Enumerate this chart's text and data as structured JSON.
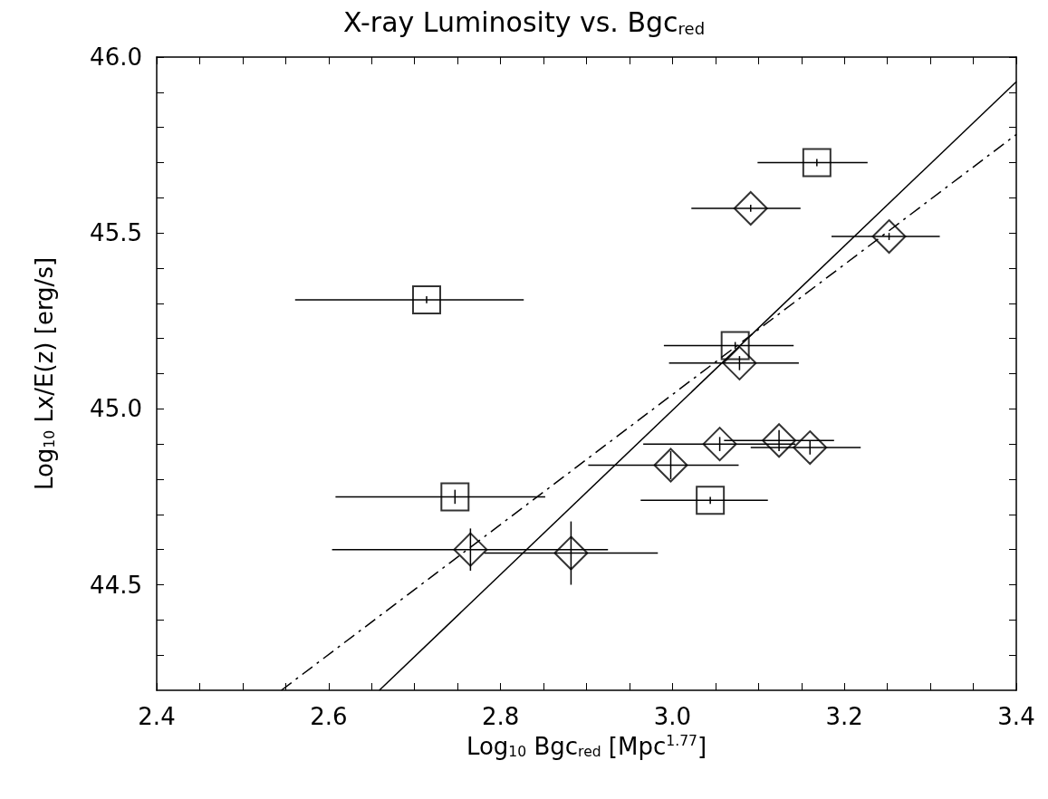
{
  "chart_data": {
    "type": "scatter",
    "title": "X-ray Luminosity vs. Bgc$_{red}$",
    "xlabel": "Log$_{10}$ Bgc$_{red}$ [Mpc$^{1.77}$]",
    "ylabel": "Log$_{10}$ Lx/E(z) [erg/s]",
    "xlim": [
      2.4,
      3.4
    ],
    "ylim": [
      44.2,
      46.0
    ],
    "xticks": [
      2.4,
      {
        "value": 2.45,
        "label": null
      },
      {
        "value": 2.5,
        "label": null
      },
      {
        "value": 2.55,
        "label": null
      },
      2.6,
      {
        "value": 2.65,
        "label": null
      },
      {
        "value": 2.7,
        "label": null
      },
      {
        "value": 2.75,
        "label": null
      },
      2.8,
      {
        "value": 2.85,
        "label": null
      },
      {
        "value": 2.9,
        "label": null
      },
      {
        "value": 2.95,
        "label": null
      },
      {
        "value": 3,
        "label": "3.0"
      },
      {
        "value": 3.05,
        "label": null
      },
      {
        "value": 3.1,
        "label": null
      },
      {
        "value": 3.15,
        "label": null
      },
      3.2,
      {
        "value": 3.25,
        "label": null
      },
      {
        "value": 3.3,
        "label": null
      },
      {
        "value": 3.35,
        "label": null
      },
      3.4
    ],
    "yticks": [
      {
        "value": 44.3,
        "label": null
      },
      {
        "value": 44.4,
        "label": null
      },
      44.5,
      {
        "value": 44.6,
        "label": null
      },
      {
        "value": 44.7,
        "label": null
      },
      {
        "value": 44.8,
        "label": null
      },
      {
        "value": 44.9,
        "label": null
      },
      {
        "value": 45,
        "label": "45.0"
      },
      {
        "value": 45.1,
        "label": null
      },
      {
        "value": 45.2,
        "label": null
      },
      {
        "value": 45.3,
        "label": null
      },
      {
        "value": 45.4,
        "label": null
      },
      45.5,
      {
        "value": 45.6,
        "label": null
      },
      {
        "value": 45.7,
        "label": null
      },
      {
        "value": 45.8,
        "label": null
      },
      {
        "value": 45.9,
        "label": null
      },
      {
        "value": 46,
        "label": "46.0"
      }
    ],
    "grid": false,
    "legend": false,
    "series": [
      {
        "type": "scatter",
        "marker": "square",
        "color": "#000000",
        "x": [
          3.168,
          2.714,
          3.073,
          3.044,
          2.747
        ],
        "values": [
          45.7,
          45.31,
          45.18,
          44.74,
          44.75
        ],
        "xerrors": [
          [
            3.099,
            3.227
          ],
          [
            2.561,
            2.827
          ],
          [
            2.99,
            3.141
          ],
          [
            2.963,
            3.111
          ],
          [
            2.608,
            2.852
          ]
        ],
        "errors": [
          0.01,
          0.01,
          0.01,
          0.01,
          0.02
        ]
      },
      {
        "type": "scatter",
        "marker": "diamond",
        "color": "#000000",
        "x": [
          3.091,
          3.252,
          3.078,
          3.055,
          3.124,
          3.16,
          2.998,
          2.765,
          2.882
        ],
        "values": [
          45.57,
          45.49,
          45.13,
          44.9,
          44.91,
          44.89,
          44.84,
          44.6,
          44.59
        ],
        "xerrors": [
          [
            3.022,
            3.149
          ],
          [
            3.185,
            3.311
          ],
          [
            2.996,
            3.147
          ],
          [
            2.966,
            3.143
          ],
          [
            3.06,
            3.188
          ],
          [
            3.091,
            3.219
          ],
          [
            2.902,
            3.077
          ],
          [
            2.604,
            2.925
          ],
          [
            2.781,
            2.983
          ]
        ],
        "errors": [
          0.01,
          0.01,
          0.02,
          0.02,
          0.03,
          0.02,
          0.04,
          0.06,
          0.09
        ]
      },
      {
        "type": "line",
        "marker": "none",
        "line_style": "solid",
        "color": "#000000",
        "x": [
          2.659,
          3.4
        ],
        "values": [
          44.2,
          45.93
        ]
      },
      {
        "type": "line",
        "marker": "none",
        "line_style": "dashed",
        "color": "#000000",
        "x": [
          2.545,
          3.4
        ],
        "values": [
          44.2,
          45.78
        ]
      }
    ]
  }
}
